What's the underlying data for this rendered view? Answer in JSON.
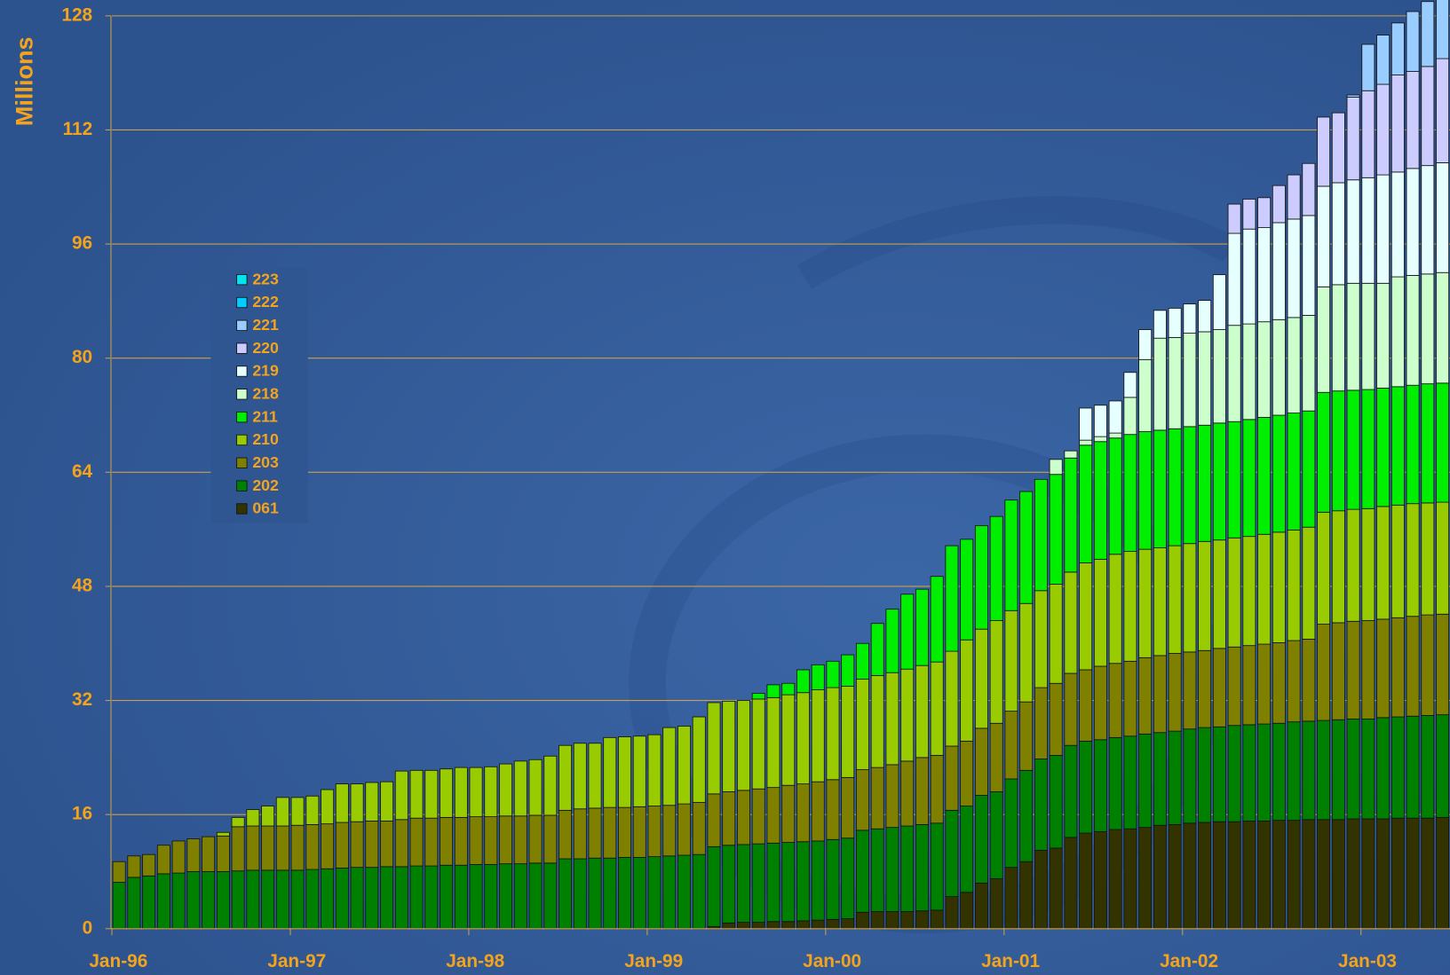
{
  "chart_data": {
    "type": "bar",
    "stacked": true,
    "y_label": "Millions",
    "ylim": [
      0,
      128
    ],
    "yticks": [
      0,
      16,
      32,
      48,
      64,
      80,
      96,
      112,
      128
    ],
    "grid": true,
    "categories": [
      "Jan-96",
      null,
      null,
      null,
      null,
      null,
      null,
      null,
      null,
      null,
      null,
      null,
      "Jan-97",
      null,
      null,
      null,
      null,
      null,
      null,
      null,
      null,
      null,
      null,
      null,
      "Jan-98",
      null,
      null,
      null,
      null,
      null,
      null,
      null,
      null,
      null,
      null,
      null,
      "Jan-99",
      null,
      null,
      null,
      null,
      null,
      null,
      null,
      null,
      null,
      null,
      null,
      "Jan-00",
      null,
      null,
      null,
      null,
      null,
      null,
      null,
      null,
      null,
      null,
      null,
      "Jan-01",
      null,
      null,
      null,
      null,
      null,
      null,
      null,
      null,
      null,
      null,
      null,
      "Jan-02",
      null,
      null,
      null,
      null,
      null,
      null,
      null,
      null,
      null,
      null,
      null,
      "Jan-03",
      null,
      null,
      null,
      null,
      null
    ],
    "series": [
      {
        "name": "061",
        "color": "#333300",
        "values": [
          null,
          null,
          null,
          null,
          null,
          null,
          null,
          null,
          null,
          null,
          null,
          null,
          null,
          null,
          null,
          null,
          null,
          null,
          null,
          null,
          null,
          null,
          null,
          null,
          null,
          null,
          null,
          null,
          null,
          null,
          null,
          null,
          null,
          null,
          null,
          null,
          null,
          null,
          null,
          null,
          0.3,
          0.8,
          0.9,
          0.9,
          1.0,
          1.0,
          1.1,
          1.2,
          1.3,
          1.4,
          2.3,
          2.4,
          2.4,
          2.4,
          2.5,
          2.6,
          4.5,
          5.1,
          6.4,
          7.0,
          8.6,
          9.4,
          11.0,
          11.3,
          12.8,
          13.4,
          13.6,
          13.9,
          14.0,
          14.2,
          14.5,
          14.6,
          14.8,
          14.9,
          15.0,
          15.0,
          15.1,
          15.1,
          15.2,
          15.2,
          15.3,
          15.3,
          15.3,
          15.4,
          15.4,
          15.4,
          15.5,
          15.5,
          15.5,
          15.6
        ]
      },
      {
        "name": "202",
        "color": "#008000",
        "values": [
          6.5,
          7.2,
          7.4,
          7.7,
          7.8,
          8.0,
          8.0,
          8.0,
          8.1,
          8.2,
          8.2,
          8.2,
          8.2,
          8.3,
          8.4,
          8.5,
          8.6,
          8.6,
          8.7,
          8.7,
          8.8,
          8.8,
          8.9,
          8.9,
          9.0,
          9.0,
          9.1,
          9.1,
          9.2,
          9.2,
          9.8,
          9.8,
          9.9,
          9.9,
          10.0,
          10.0,
          10.1,
          10.2,
          10.3,
          10.4,
          11.2,
          10.9,
          10.9,
          11.0,
          11.0,
          11.1,
          11.1,
          11.1,
          11.2,
          11.3,
          11.5,
          11.6,
          11.8,
          12.0,
          12.1,
          12.2,
          12.1,
          12.1,
          12.3,
          12.2,
          12.4,
          12.8,
          12.8,
          13.0,
          12.9,
          12.9,
          12.9,
          12.9,
          13.0,
          13.1,
          13.0,
          13.1,
          13.2,
          13.3,
          13.3,
          13.5,
          13.5,
          13.6,
          13.6,
          13.8,
          13.8,
          13.9,
          14.0,
          14.0,
          14.0,
          14.2,
          14.2,
          14.3,
          14.4,
          14.4
        ]
      },
      {
        "name": "203",
        "color": "#808000",
        "values": [
          2.9,
          3.0,
          3.0,
          4.0,
          4.5,
          4.6,
          4.9,
          5.0,
          6.2,
          6.2,
          6.2,
          6.2,
          6.3,
          6.3,
          6.3,
          6.4,
          6.4,
          6.5,
          6.4,
          6.6,
          6.7,
          6.7,
          6.7,
          6.7,
          6.7,
          6.7,
          6.7,
          6.7,
          6.7,
          6.7,
          6.8,
          7.0,
          7.0,
          7.1,
          7.0,
          7.1,
          7.1,
          7.1,
          7.2,
          7.3,
          7.4,
          7.5,
          7.6,
          7.7,
          7.8,
          8.0,
          8.1,
          8.3,
          8.4,
          8.5,
          8.5,
          8.6,
          8.8,
          9.1,
          9.4,
          9.5,
          9.0,
          9.1,
          9.4,
          9.6,
          9.5,
          9.6,
          10.0,
          10.1,
          10.1,
          10.0,
          10.3,
          10.4,
          10.5,
          10.7,
          10.8,
          10.9,
          10.8,
          10.8,
          11.0,
          11.0,
          11.1,
          11.2,
          11.3,
          11.4,
          11.5,
          13.5,
          13.6,
          13.7,
          13.8,
          13.8,
          13.9,
          14.0,
          14.1,
          14.1
        ]
      },
      {
        "name": "210",
        "color": "#99cc00",
        "values": [
          null,
          null,
          null,
          null,
          null,
          null,
          null,
          0.5,
          1.3,
          2.3,
          2.8,
          4.0,
          3.9,
          4.0,
          4.8,
          5.4,
          5.3,
          5.4,
          5.5,
          6.8,
          6.7,
          6.7,
          6.8,
          7.0,
          6.9,
          7.0,
          7.3,
          7.7,
          7.8,
          8.3,
          9.1,
          9.2,
          9.1,
          9.8,
          9.9,
          9.9,
          10.0,
          10.9,
          10.9,
          12.0,
          12.8,
          12.7,
          12.6,
          12.6,
          12.6,
          12.7,
          12.8,
          12.9,
          12.9,
          12.8,
          12.7,
          12.9,
          12.9,
          12.9,
          12.9,
          13.1,
          13.3,
          14.2,
          13.9,
          14.4,
          14.1,
          13.8,
          13.6,
          13.9,
          14.2,
          15.0,
          15.0,
          15.3,
          15.4,
          15.2,
          15.1,
          15.1,
          15.2,
          15.3,
          15.2,
          15.3,
          15.3,
          15.4,
          15.5,
          15.5,
          15.7,
          15.7,
          15.7,
          15.7,
          15.7,
          15.8,
          15.8,
          15.8,
          15.7,
          15.7
        ]
      },
      {
        "name": "211",
        "color": "#00ee00",
        "values": [
          null,
          null,
          null,
          null,
          null,
          null,
          null,
          null,
          null,
          null,
          null,
          null,
          null,
          null,
          null,
          null,
          null,
          null,
          null,
          null,
          null,
          null,
          null,
          null,
          null,
          null,
          null,
          null,
          null,
          null,
          null,
          null,
          null,
          null,
          null,
          null,
          null,
          null,
          null,
          null,
          null,
          null,
          null,
          0.8,
          1.8,
          1.6,
          3.2,
          3.5,
          3.7,
          4.4,
          5.0,
          7.3,
          8.9,
          10.5,
          10.7,
          12.0,
          14.8,
          14.1,
          14.5,
          14.6,
          15.5,
          15.7,
          15.6,
          15.4,
          16.0,
          16.5,
          16.5,
          16.3,
          16.4,
          16.5,
          16.5,
          16.4,
          16.4,
          16.3,
          16.4,
          16.3,
          16.4,
          16.4,
          16.4,
          16.4,
          16.3,
          16.8,
          16.8,
          16.7,
          16.7,
          16.6,
          16.6,
          16.6,
          16.7,
          16.7
        ]
      },
      {
        "name": "218",
        "color": "#ccffcc",
        "values": [
          null,
          null,
          null,
          null,
          null,
          null,
          null,
          null,
          null,
          null,
          null,
          null,
          null,
          null,
          null,
          null,
          null,
          null,
          null,
          null,
          null,
          null,
          null,
          null,
          null,
          null,
          null,
          null,
          null,
          null,
          null,
          null,
          null,
          null,
          null,
          null,
          null,
          null,
          null,
          null,
          null,
          null,
          null,
          null,
          null,
          null,
          null,
          null,
          null,
          null,
          null,
          null,
          null,
          null,
          null,
          null,
          null,
          null,
          null,
          null,
          null,
          null,
          null,
          2.1,
          1.0,
          0.7,
          0.7,
          0.7,
          5.2,
          10.1,
          12.9,
          12.8,
          13.1,
          13.1,
          13.1,
          13.5,
          13.4,
          13.4,
          13.4,
          13.4,
          13.4,
          14.8,
          14.9,
          15.0,
          14.9,
          14.7,
          15.4,
          15.4,
          15.4,
          15.5
        ]
      },
      {
        "name": "219",
        "color": "#e6ffff",
        "values": [
          null,
          null,
          null,
          null,
          null,
          null,
          null,
          null,
          null,
          null,
          null,
          null,
          null,
          null,
          null,
          null,
          null,
          null,
          null,
          null,
          null,
          null,
          null,
          null,
          null,
          null,
          null,
          null,
          null,
          null,
          null,
          null,
          null,
          null,
          null,
          null,
          null,
          null,
          null,
          null,
          null,
          null,
          null,
          null,
          null,
          null,
          null,
          null,
          null,
          null,
          null,
          null,
          null,
          null,
          null,
          null,
          null,
          null,
          null,
          null,
          null,
          null,
          null,
          null,
          null,
          4.5,
          4.4,
          4.5,
          3.5,
          4.2,
          3.9,
          4.1,
          4.1,
          4.4,
          7.7,
          12.9,
          13.3,
          13.2,
          13.6,
          13.8,
          14.0,
          14.1,
          14.3,
          14.5,
          14.8,
          15.2,
          14.7,
          15.0,
          15.2,
          15.4
        ]
      },
      {
        "name": "220",
        "color": "#ccccff",
        "values": [
          null,
          null,
          null,
          null,
          null,
          null,
          null,
          null,
          null,
          null,
          null,
          null,
          null,
          null,
          null,
          null,
          null,
          null,
          null,
          null,
          null,
          null,
          null,
          null,
          null,
          null,
          null,
          null,
          null,
          null,
          null,
          null,
          null,
          null,
          null,
          null,
          null,
          null,
          null,
          null,
          null,
          null,
          null,
          null,
          null,
          null,
          null,
          null,
          null,
          null,
          null,
          null,
          null,
          null,
          null,
          null,
          null,
          null,
          null,
          null,
          null,
          null,
          null,
          null,
          null,
          null,
          null,
          null,
          null,
          null,
          null,
          null,
          null,
          null,
          null,
          4.1,
          4.2,
          4.2,
          5.2,
          6.2,
          7.3,
          9.7,
          9.8,
          11.6,
          12.2,
          12.7,
          13.6,
          13.6,
          13.9,
          14.6
        ]
      },
      {
        "name": "221",
        "color": "#99ccff",
        "values": [
          null,
          null,
          null,
          null,
          null,
          null,
          null,
          null,
          null,
          null,
          null,
          null,
          null,
          null,
          null,
          null,
          null,
          null,
          null,
          null,
          null,
          null,
          null,
          null,
          null,
          null,
          null,
          null,
          null,
          null,
          null,
          null,
          null,
          null,
          null,
          null,
          null,
          null,
          null,
          null,
          null,
          null,
          null,
          null,
          null,
          null,
          null,
          null,
          null,
          null,
          null,
          null,
          null,
          null,
          null,
          null,
          null,
          null,
          null,
          null,
          null,
          null,
          null,
          null,
          null,
          null,
          null,
          null,
          null,
          null,
          null,
          null,
          null,
          null,
          null,
          null,
          null,
          null,
          null,
          null,
          null,
          null,
          null,
          0.3,
          6.5,
          6.9,
          7.3,
          8.4,
          9.1,
          9.0
        ]
      },
      {
        "name": "222",
        "color": "#00ccff",
        "values": [
          null,
          null,
          null,
          null,
          null,
          null,
          null,
          null,
          null,
          null,
          null,
          null,
          null,
          null,
          null,
          null,
          null,
          null,
          null,
          null,
          null,
          null,
          null,
          null,
          null,
          null,
          null,
          null,
          null,
          null,
          null,
          null,
          null,
          null,
          null,
          null,
          null,
          null,
          null,
          null,
          null,
          null,
          null,
          null,
          null,
          null,
          null,
          null,
          null,
          null,
          null,
          null,
          null,
          null,
          null,
          null,
          null,
          null,
          null,
          null,
          null,
          null,
          null,
          null,
          null,
          null,
          null,
          null,
          null,
          null,
          null,
          null,
          null,
          null,
          null,
          null,
          null,
          null,
          null,
          null,
          null,
          null,
          null,
          null,
          null,
          null,
          null,
          null,
          null,
          null
        ]
      },
      {
        "name": "223",
        "color": "#00e5ee",
        "values": [
          null,
          null,
          null,
          null,
          null,
          null,
          null,
          null,
          null,
          null,
          null,
          null,
          null,
          null,
          null,
          null,
          null,
          null,
          null,
          null,
          null,
          null,
          null,
          null,
          null,
          null,
          null,
          null,
          null,
          null,
          null,
          null,
          null,
          null,
          null,
          null,
          null,
          null,
          null,
          null,
          null,
          null,
          null,
          null,
          null,
          null,
          null,
          null,
          null,
          null,
          null,
          null,
          null,
          null,
          null,
          null,
          null,
          null,
          null,
          null,
          null,
          null,
          null,
          null,
          null,
          null,
          null,
          null,
          null,
          null,
          null,
          null,
          null,
          null,
          null,
          null,
          null,
          null,
          null,
          null,
          null,
          null,
          null,
          null,
          null,
          null,
          null,
          null,
          null,
          null
        ]
      }
    ]
  }
}
